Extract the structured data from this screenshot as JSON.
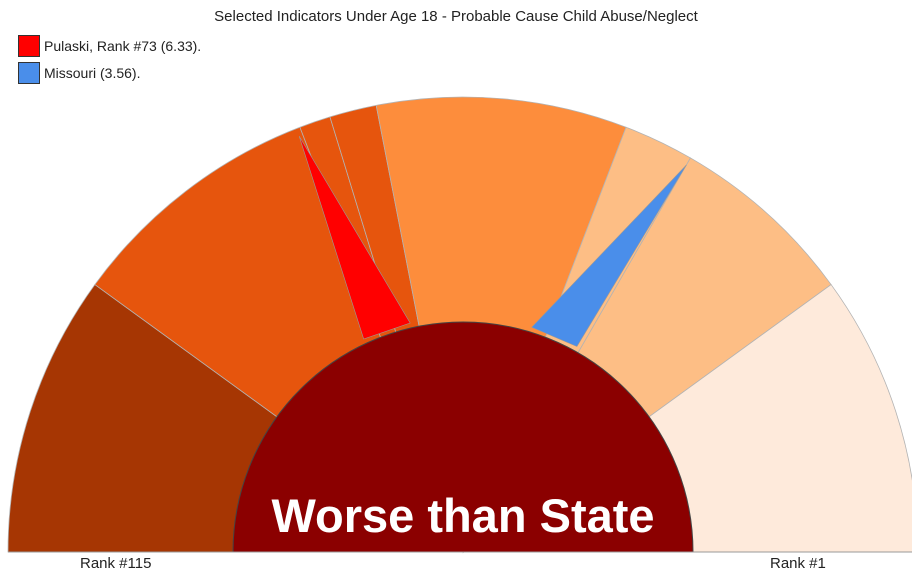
{
  "chart_data": {
    "type": "gauge",
    "title": "Selected Indicators Under Age 18 - Probable Cause Child Abuse/Neglect",
    "legend": [
      {
        "label": "Pulaski, Rank #73 (6.33).",
        "color": "#ff0000"
      },
      {
        "label": "Missouri (3.56).",
        "color": "#4a8eea"
      }
    ],
    "scale_labels": {
      "left": "Rank #115",
      "right": "Rank #1"
    },
    "bands_color_order_left_to_right": [
      "#a63603",
      "#e6550d",
      "#fd8d3c",
      "#fdbe85",
      "#feeadb"
    ],
    "center_label": "Worse than State",
    "center_color": "#8b0000",
    "pointers": [
      {
        "name": "Pulaski",
        "rank": 73,
        "value": 6.33,
        "color": "#ff0000"
      },
      {
        "name": "Missouri",
        "value": 3.56,
        "color": "#4a8eea"
      }
    ]
  }
}
